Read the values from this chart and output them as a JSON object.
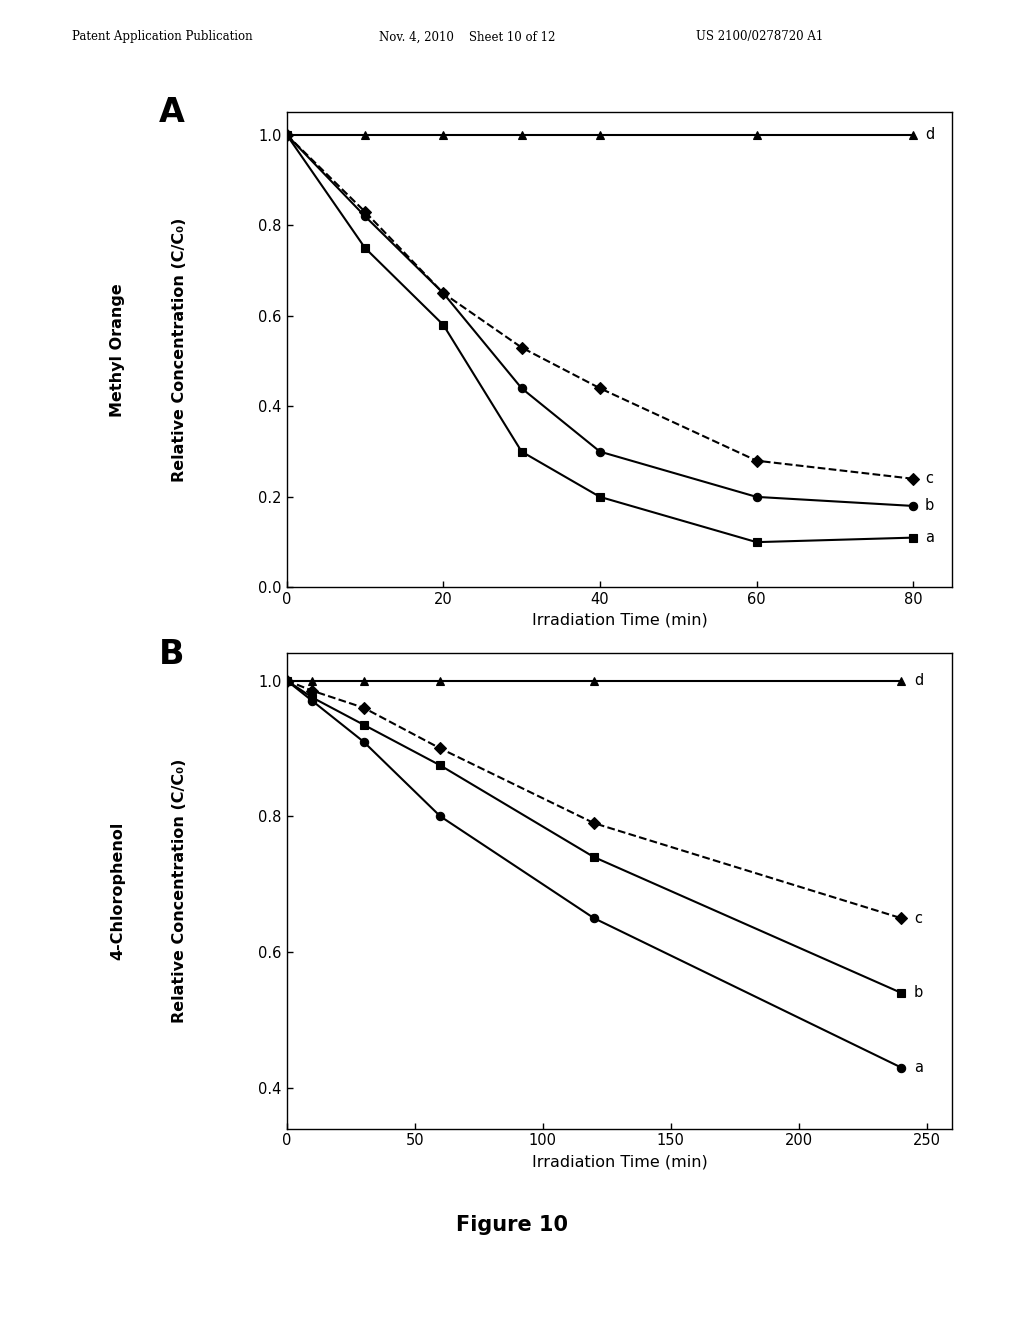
{
  "header_left": "Patent Application Publication",
  "header_mid": "Nov. 4, 2010    Sheet 10 of 12",
  "header_right": "US 2100/0278720 A1",
  "figure_label": "Figure 10",
  "panel_A": {
    "label": "A",
    "xlabel": "Irradiation Time (min)",
    "ylabel_line1": "Methyl Orange",
    "ylabel_line2": "Relative Concentration (C/C₀)",
    "xlim": [
      0,
      85
    ],
    "ylim": [
      0.0,
      1.05
    ],
    "xticks": [
      0,
      20,
      40,
      60,
      80
    ],
    "yticks": [
      0.0,
      0.2,
      0.4,
      0.6,
      0.8,
      1.0
    ],
    "series": {
      "a": {
        "x": [
          0,
          10,
          20,
          30,
          40,
          60,
          80
        ],
        "y": [
          1.0,
          0.75,
          0.58,
          0.3,
          0.2,
          0.1,
          0.11
        ],
        "marker": "s",
        "linestyle": "-",
        "label": "a"
      },
      "b": {
        "x": [
          0,
          10,
          20,
          30,
          40,
          60,
          80
        ],
        "y": [
          1.0,
          0.82,
          0.65,
          0.44,
          0.3,
          0.2,
          0.18
        ],
        "marker": "o",
        "linestyle": "-",
        "label": "b"
      },
      "c": {
        "x": [
          0,
          10,
          20,
          30,
          40,
          60,
          80
        ],
        "y": [
          1.0,
          0.83,
          0.65,
          0.53,
          0.44,
          0.28,
          0.24
        ],
        "marker": "D",
        "linestyle": "--",
        "label": "c"
      },
      "d": {
        "x": [
          0,
          10,
          20,
          30,
          40,
          60,
          80
        ],
        "y": [
          1.0,
          1.0,
          1.0,
          1.0,
          1.0,
          1.0,
          1.0
        ],
        "marker": "^",
        "linestyle": "-",
        "label": "d"
      }
    }
  },
  "panel_B": {
    "label": "B",
    "xlabel": "Irradiation Time (min)",
    "ylabel_line1": "4-Chlorophenol",
    "ylabel_line2": "Relative Concentration (C/C₀)",
    "xlim": [
      0,
      260
    ],
    "ylim": [
      0.34,
      1.04
    ],
    "xticks": [
      0,
      50,
      100,
      150,
      200,
      250
    ],
    "yticks": [
      0.4,
      0.6,
      0.8,
      1.0
    ],
    "series": {
      "a": {
        "x": [
          0,
          10,
          30,
          60,
          120,
          240
        ],
        "y": [
          1.0,
          0.97,
          0.91,
          0.8,
          0.65,
          0.43
        ],
        "marker": "o",
        "linestyle": "-",
        "label": "a"
      },
      "b": {
        "x": [
          0,
          10,
          30,
          60,
          120,
          240
        ],
        "y": [
          1.0,
          0.975,
          0.935,
          0.875,
          0.74,
          0.54
        ],
        "marker": "s",
        "linestyle": "-",
        "label": "b"
      },
      "c": {
        "x": [
          0,
          10,
          30,
          60,
          120,
          240
        ],
        "y": [
          1.0,
          0.985,
          0.96,
          0.9,
          0.79,
          0.65
        ],
        "marker": "D",
        "linestyle": "--",
        "label": "c"
      },
      "d": {
        "x": [
          0,
          10,
          30,
          60,
          120,
          240
        ],
        "y": [
          1.0,
          1.0,
          1.0,
          1.0,
          1.0,
          1.0
        ],
        "marker": "^",
        "linestyle": "-",
        "label": "d"
      }
    }
  },
  "line_color": "#000000",
  "marker_size": 6,
  "linewidth": 1.5,
  "background_color": "#ffffff"
}
